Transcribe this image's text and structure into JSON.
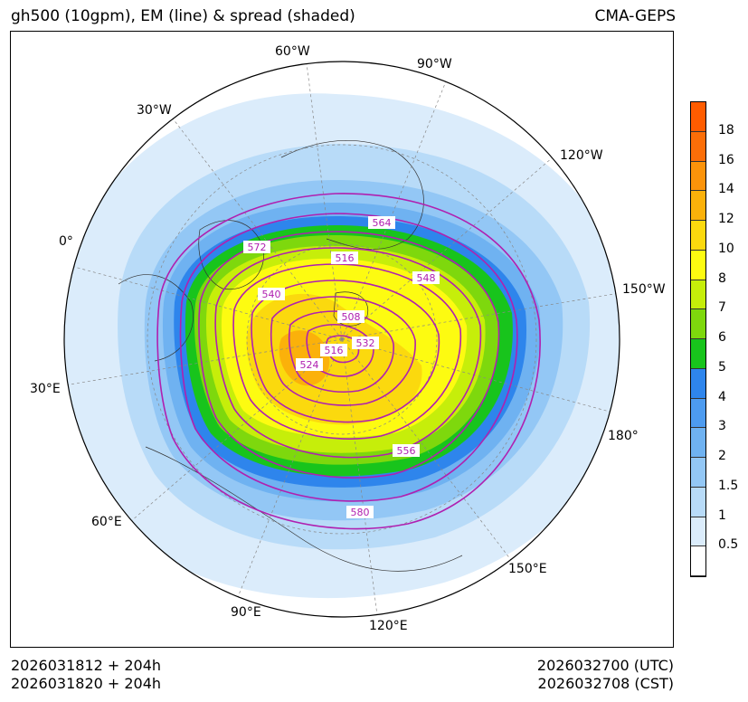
{
  "header": {
    "title": "gh500 (10gpm), EM (line) & spread (shaded)",
    "model": "CMA-GEPS"
  },
  "map": {
    "longitude_labels": [
      "60°W",
      "90°W",
      "30°W",
      "120°W",
      "0°",
      "150°W",
      "30°E",
      "180°",
      "60°E",
      "150°E",
      "90°E",
      "120°E"
    ],
    "contour_labels": [
      "564",
      "572",
      "516",
      "548",
      "540",
      "508",
      "532",
      "516",
      "524",
      "556",
      "580"
    ],
    "contour_color": "#b020b0",
    "ocean_color": "#ffffff"
  },
  "colorbar": {
    "levels": [
      "0.5",
      "1",
      "1.5",
      "2",
      "3",
      "4",
      "5",
      "6",
      "7",
      "8",
      "10",
      "12",
      "14",
      "16",
      "18"
    ],
    "colors": [
      "#ffffff",
      "#dbecfb",
      "#b8dbf8",
      "#93c7f5",
      "#6fb2f1",
      "#4d9bef",
      "#2e85ec",
      "#18c41c",
      "#7ed80d",
      "#c6ee0a",
      "#fdfb11",
      "#fbd90e",
      "#fbb10a",
      "#fb930a",
      "#fb6e08",
      "#ff5c00"
    ]
  },
  "footer": {
    "init_utc": "2026031812 + 204h",
    "init_cst": "2026031820 + 204h",
    "valid_utc": "2026032700 (UTC)",
    "valid_cst": "2026032708 (CST)"
  }
}
